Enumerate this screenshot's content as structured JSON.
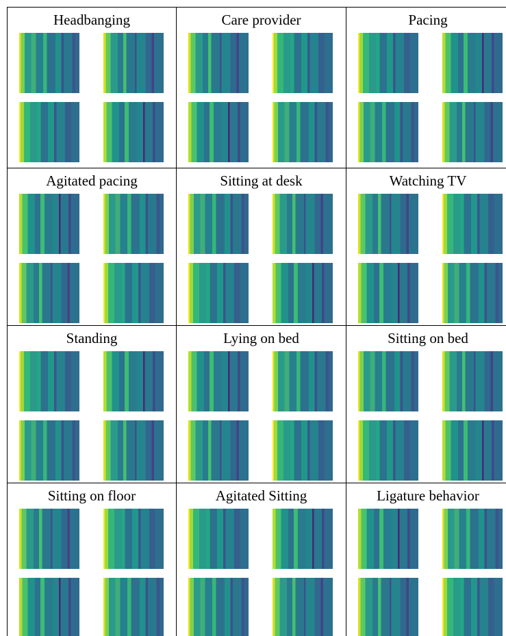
{
  "panels": [
    {
      "label": "Headbanging"
    },
    {
      "label": "Care provider"
    },
    {
      "label": "Pacing"
    },
    {
      "label": "Agitated pacing"
    },
    {
      "label": "Sitting at desk"
    },
    {
      "label": "Watching TV"
    },
    {
      "label": "Standing"
    },
    {
      "label": "Lying on bed"
    },
    {
      "label": "Sitting on bed"
    },
    {
      "label": "Sitting on floor"
    },
    {
      "label": "Agitated Sitting"
    },
    {
      "label": "Ligature behavior"
    }
  ]
}
